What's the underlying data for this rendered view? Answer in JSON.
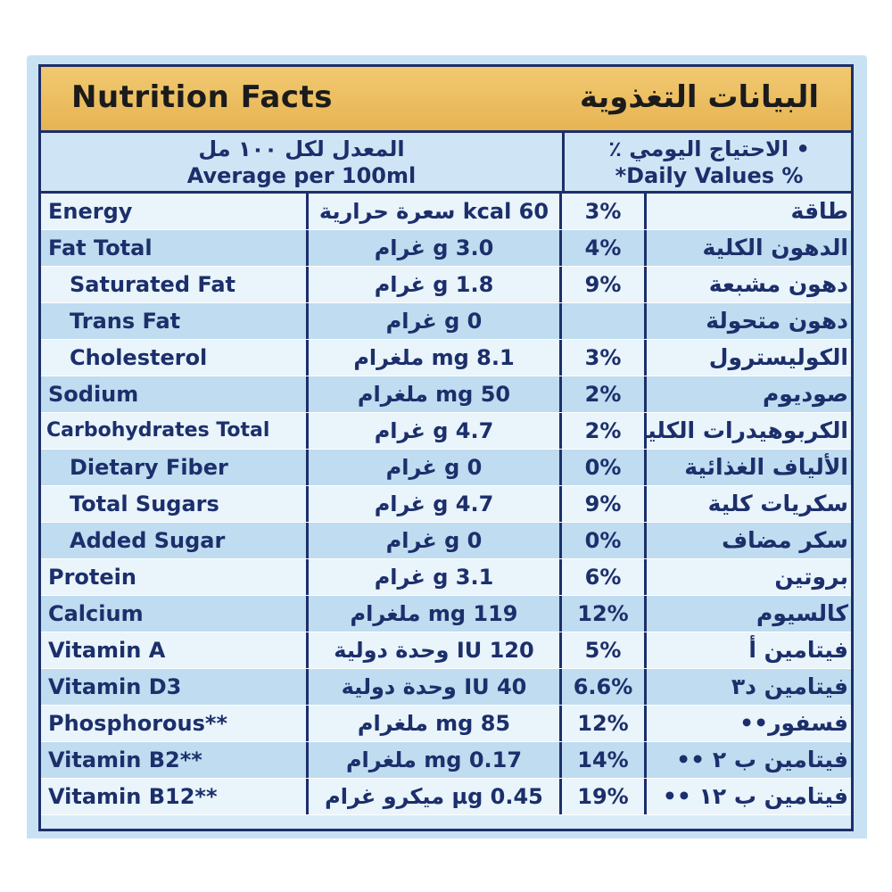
{
  "header": {
    "title_en": "Nutrition Facts",
    "title_ar": "البيانات التغذوية"
  },
  "subheader": {
    "average_ar": "المعدل لكل ١٠٠ مل",
    "average_en": "Average per 100ml",
    "daily_values_ar": "• الاحتياج اليومي ٪",
    "daily_values_en": "*Daily Values %"
  },
  "rows": [
    {
      "name_en": "Energy",
      "amount": "60 kcal سعرة حرارية",
      "percent": "3%",
      "name_ar": "طاقة"
    },
    {
      "name_en": "Fat Total",
      "amount": "3.0 g غرام",
      "percent": "4%",
      "name_ar": "الدهون الكلية"
    },
    {
      "name_en": "Saturated Fat",
      "amount": "1.8 g غرام",
      "percent": "9%",
      "name_ar": "دهون مشبعة"
    },
    {
      "name_en": "Trans Fat",
      "amount": "0 g غرام",
      "percent": "",
      "name_ar": "دهون متحولة"
    },
    {
      "name_en": "Cholesterol",
      "amount": "8.1 mg ملغرام",
      "percent": "3%",
      "name_ar": "الكوليسترول"
    },
    {
      "name_en": "Sodium",
      "amount": "50 mg ملغرام",
      "percent": "2%",
      "name_ar": "صوديوم"
    },
    {
      "name_en": "Carbohydrates Total",
      "amount": "4.7 g غرام",
      "percent": "2%",
      "name_ar": "الكربوهيدرات الكلية"
    },
    {
      "name_en": "Dietary Fiber",
      "amount": "0 g غرام",
      "percent": "0%",
      "name_ar": "الألياف الغذائية"
    },
    {
      "name_en": "Total Sugars",
      "amount": "4.7 g غرام",
      "percent": "9%",
      "name_ar": "سكريات كلية"
    },
    {
      "name_en": "Added Sugar",
      "amount": "0 g غرام",
      "percent": "0%",
      "name_ar": "سكر مضاف"
    },
    {
      "name_en": "Protein",
      "amount": "3.1 g غرام",
      "percent": "6%",
      "name_ar": "بروتين"
    },
    {
      "name_en": "Calcium",
      "amount": "119 mg ملغرام",
      "percent": "12%",
      "name_ar": "كالسيوم"
    },
    {
      "name_en": "Vitamin A",
      "amount": "120 IU وحدة دولية",
      "percent": "5%",
      "name_ar": "فيتامين أ"
    },
    {
      "name_en": "Vitamin D3",
      "amount": "40 IU وحدة دولية",
      "percent": "6.6%",
      "name_ar": "فيتامين د٣"
    },
    {
      "name_en": "Phosphorous**",
      "amount": "85 mg ملغرام",
      "percent": "12%",
      "name_ar": "فسفور••"
    },
    {
      "name_en": "Vitamin B2**",
      "amount": "0.17 mg ملغرام",
      "percent": "14%",
      "name_ar": "فيتامين ب ٢ ••"
    },
    {
      "name_en": "Vitamin B12**",
      "amount": "0.45 µg ميكرو غرام",
      "percent": "19%",
      "name_ar": "فيتامين ب ١٢ ••"
    }
  ],
  "colors": {
    "border": "#1c2f6b",
    "header_gold": "#e7b453",
    "row_light": "#e9f4fb",
    "row_dark": "#bfdcf0"
  }
}
